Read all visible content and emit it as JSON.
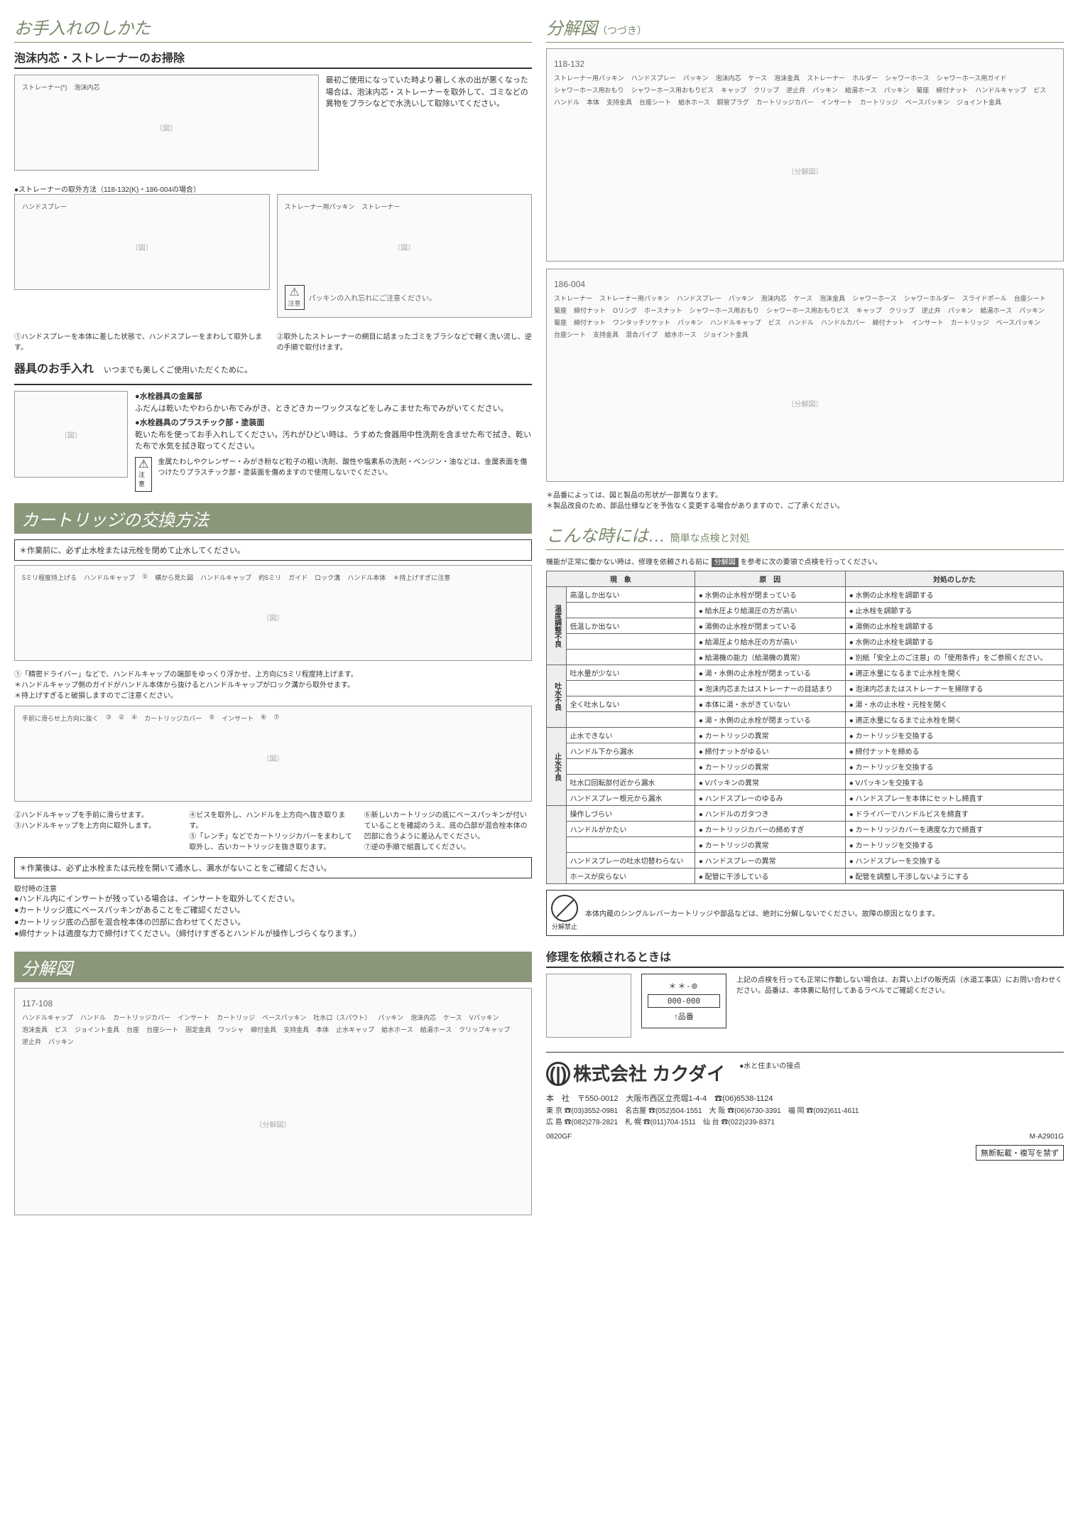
{
  "left": {
    "sec1": {
      "title": "お手入れのしかた",
      "sub1_title": "泡沫内芯・ストレーナーのお掃除",
      "intro": "最初ご使用になっていた時より著しく水の出が悪くなった場合は、泡沫内芯・ストレーナーを取外して、ゴミなどの異物をブラシなどで水洗いして取除いてください。",
      "labels1": [
        "ストレーナー(*)",
        "泡沫内芯"
      ],
      "note1": "●ストレーナーの取外方法（118-132(K)・186-004の場合）",
      "labels2": [
        "ハンドスプレー",
        "ストレーナー用パッキン",
        "ストレーナー"
      ],
      "warn_label": "注意",
      "warn_text": "パッキンの入れ忘れにご注意ください。",
      "step1": "①ハンドスプレーを本体に差した状態で、ハンドスプレーをまわして取外します。",
      "step2": "②取外したストレーナーの網目に詰まったゴミをブラシなどで軽く洗い流し、逆の手順で取付けます。",
      "sub2_title": "器具のお手入れ",
      "sub2_lead": "いつまでも美しくご使用いただくために。",
      "metal_h": "●水栓器具の金属部",
      "metal_t": "ふだんは乾いたやわらかい布でみがき、ときどきカーワックスなどをしみこませた布でみがいてください。",
      "plastic_h": "●水栓器具のプラスチック部・塗装面",
      "plastic_t": "乾いた布を使ってお手入れしてください。汚れがひどい時は、うすめた食器用中性洗剤を含ませた布で拭き、乾いた布で水気を拭き取ってください。",
      "warn2": "金属たわしやクレンザー・みがき粉など粒子の粗い洗剤、酸性や塩素系の洗剤・ベンジン・油などは、金属表面を傷つけたりプラスチック部・塗装面を傷めますので使用しないでください。"
    },
    "sec2": {
      "title": "カートリッジの交換方法",
      "pre": "＊作業前に、必ず止水栓または元栓を閉めて止水してください。",
      "d1_labels": [
        "5ミリ程度持上げる",
        "ハンドルキャップ",
        "①",
        "横から見た図",
        "ハンドルキャップ",
        "約5ミリ",
        "ガイド",
        "ロック溝",
        "ハンドル本体",
        "＊持上げすぎに注意"
      ],
      "t1a": "①「精密ドライバー」などで、ハンドルキャップの端部をゆっくり浮かせ、上方向に5ミリ程度持上げます。",
      "t1b": "＊ハンドルキャップ側のガイドがハンドル本体から抜けるとハンドルキャップがロック溝から取外せます。",
      "t1c": "＊持上げすぎると破損しますのでご注意ください。",
      "d2_labels": [
        "手前に滑らせ上方向に抜く",
        "③",
        "②",
        "④",
        "カートリッジカバー",
        "⑤",
        "インサート",
        "⑥",
        "⑦"
      ],
      "t2": "②ハンドルキャップを手前に滑らせます。",
      "t3": "③ハンドルキャップを上方向に取外します。",
      "t4": "④ビスを取外し、ハンドルを上方向へ抜き取ります。",
      "t5": "⑤「レンチ」などでカートリッジカバーをまわして取外し、古いカートリッジを抜き取ります。",
      "t6": "⑥新しいカートリッジの底にベースパッキンが付いていることを確認のうえ、底の凸部が混合栓本体の凹部に合うように差込んでください。",
      "t7": "⑦逆の手順で組直してください。",
      "post": "＊作業後は、必ず止水栓または元栓を開いて通水し、漏水がないことをご確認ください。",
      "install_h": "取付時の注意",
      "install": [
        "ハンドル内にインサートが残っている場合は、インサートを取外してください。",
        "カートリッジ底にベースパッキンがあることをご確認ください。",
        "カートリッジ底の凸部を混合栓本体の凹部に合わせてください。",
        "締付ナットは適度な力で締付けてください。（締付けすぎるとハンドルが操作しづらくなります。）"
      ]
    },
    "sec3": {
      "title": "分解図",
      "model": "117-108",
      "labels": [
        "ハンドルキャップ",
        "ハンドル",
        "カートリッジカバー",
        "インサート",
        "カートリッジ",
        "ベースパッキン",
        "吐水口（スパウト）",
        "パッキン",
        "泡沫内芯",
        "ケース",
        "Vパッキン",
        "泡沫金具",
        "ビス",
        "ジョイント金具",
        "台座",
        "台座シート",
        "固定金具",
        "ワッシャ",
        "締付金具",
        "支持金具",
        "本体",
        "止水キャップ",
        "給水ホース",
        "給湯ホース",
        "クリップキャップ",
        "逆止弁",
        "パッキン"
      ]
    }
  },
  "right": {
    "sec3b": {
      "title": "分解図",
      "title_sub": "（つづき）",
      "model1": "118-132",
      "labels1": [
        "ストレーナー用パッキン",
        "ハンドスプレー",
        "パッキン",
        "泡沫内芯",
        "ケース",
        "泡沫金具",
        "ストレーナー",
        "ホルダー",
        "シャワーホース",
        "シャワーホース用ガイド",
        "シャワーホース用おもり",
        "シャワーホース用おもりビス",
        "キャップ",
        "クリップ",
        "逆止弁",
        "パッキン",
        "給湯ホース",
        "パッキン",
        "菊座",
        "締付ナット",
        "ハンドルキャップ",
        "ビス",
        "ハンドル",
        "本体",
        "支持金具",
        "台座シート",
        "給水ホース",
        "銅管プラグ",
        "カートリッジカバー",
        "インサート",
        "カートリッジ",
        "ベースパッキン",
        "ジョイント金具"
      ],
      "model2": "186-004",
      "labels2": [
        "ストレーナー",
        "ストレーナー用パッキン",
        "ハンドスプレー",
        "パッキン",
        "泡沫内芯",
        "ケース",
        "泡沫金具",
        "シャワーホース",
        "シャワーホルダー",
        "スライドポール",
        "台座シート",
        "菊座",
        "締付ナット",
        "Oリング",
        "ホースナット",
        "シャワーホース用おもり",
        "シャワーホース用おもりビス",
        "キャップ",
        "クリップ",
        "逆止弁",
        "パッキン",
        "給湯ホース",
        "パッキン",
        "菊座",
        "締付ナット",
        "ワンタッチソケット",
        "パッキン",
        "ハンドルキャップ",
        "ビス",
        "ハンドル",
        "ハンドルカバー",
        "締付ナット",
        "インサート",
        "カートリッジ",
        "ベースパッキン",
        "台座シート",
        "支持金具",
        "混合パイプ",
        "給水ホース",
        "ジョイント金具"
      ],
      "notes": [
        "＊品番によっては、図と製品の形状が一部異なります。",
        "＊製品改良のため、部品仕様などを予告なく変更する場合がありますので、ご了承ください。"
      ]
    },
    "sec4": {
      "title": "こんな時には…",
      "title_sub": "簡単な点検と対処",
      "lead_a": "機能が正常に働かない時は、修理を依頼される前に",
      "lead_tag": "分解図",
      "lead_b": "を参考に次の要領で点検を行ってください。",
      "th1": "現　象",
      "th2": "原　因",
      "th3": "対処のしかた",
      "groups": [
        {
          "g": "温度調整不良",
          "rows": [
            {
              "s": "高温しか出ない",
              "c": "水側の止水栓が閉まっている",
              "a": "水側の止水栓を調節する"
            },
            {
              "s": "",
              "c": "給水圧より給湯圧の方が高い",
              "a": "止水栓を調節する"
            },
            {
              "s": "低温しか出ない",
              "c": "湯側の止水栓が閉まっている",
              "a": "湯側の止水栓を調節する"
            },
            {
              "s": "",
              "c": "給湯圧より給水圧の方が高い",
              "a": "水側の止水栓を調節する"
            },
            {
              "s": "",
              "c": "給湯機の能力（給湯機の異常）",
              "a": "別紙「安全上のご注意」の「使用条件」をご参照ください。"
            }
          ]
        },
        {
          "g": "吐水不良",
          "rows": [
            {
              "s": "吐水量が少ない",
              "c": "湯・水側の止水栓が閉まっている",
              "a": "適正水量になるまで止水栓を開く"
            },
            {
              "s": "",
              "c": "泡沫内芯またはストレーナーの目詰まり",
              "a": "泡沫内芯またはストレーナーを掃除する"
            },
            {
              "s": "全く吐水しない",
              "c": "本体に湯・水がきていない",
              "a": "湯・水の止水栓・元栓を開く"
            },
            {
              "s": "",
              "c": "湯・水側の止水栓が閉まっている",
              "a": "適正水量になるまで止水栓を開く"
            }
          ]
        },
        {
          "g": "止水不良",
          "rows": [
            {
              "s": "止水できない",
              "c": "カートリッジの異常",
              "a": "カートリッジを交換する"
            },
            {
              "s": "ハンドル下から漏水",
              "c": "締付ナットがゆるい",
              "a": "締付ナットを締める"
            },
            {
              "s": "",
              "c": "カートリッジの異常",
              "a": "カートリッジを交換する"
            },
            {
              "s": "吐水口回転部付近から漏水",
              "c": "Vパッキンの異常",
              "a": "Vパッキンを交換する"
            },
            {
              "s": "ハンドスプレー根元から漏水",
              "c": "ハンドスプレーのゆるみ",
              "a": "ハンドスプレーを本体にセットし締直す"
            }
          ]
        },
        {
          "g": "",
          "rows": [
            {
              "s": "操作しづらい",
              "c": "ハンドルのガタつき",
              "a": "ドライバーでハンドルビスを締直す"
            },
            {
              "s": "ハンドルがかたい",
              "c": "カートリッジカバーの締めすぎ",
              "a": "カートリッジカバーを適度な力で締直す"
            },
            {
              "s": "",
              "c": "カートリッジの異常",
              "a": "カートリッジを交換する"
            },
            {
              "s": "ハンドスプレーの吐水切替わらない",
              "c": "ハンドスプレーの異常",
              "a": "ハンドスプレーを交換する"
            },
            {
              "s": "ホースが戻らない",
              "c": "配管に干渉している",
              "a": "配管を調整し干渉しないようにする"
            }
          ]
        }
      ],
      "prohibit_label": "分解禁止",
      "prohibit_text": "本体内蔵のシングルレバーカートリッジや部品などは、絶対に分解しないでください。故障の原因となります。"
    },
    "sec5": {
      "title": "修理を依頼されるときは",
      "code_stars": "＊＊-⊛",
      "code_num": "000-000",
      "code_arrow": "↑品番",
      "text": "上記の点検を行っても正常に作動しない場合は、お買い上げの販売店（水道工事店）にお問い合わせください。品番は、本体裏に貼付してあるラベルでご確認ください。"
    },
    "footer": {
      "tagline": "●水と住まいの接点",
      "company": "株式会社 カクダイ",
      "hq": "本　社　〒550-0012　大阪市西区立売堀1-4-4　☎(06)6538-1124",
      "branches": "東 京 ☎(03)3552-0981　名古屋 ☎(052)504-1551　大 阪 ☎(06)6730-3391　福 岡 ☎(092)611-4611\n広 島 ☎(082)278-2821　札 幌 ☎(011)704-1511　仙 台 ☎(022)239-8371",
      "code1": "0820GF",
      "code2": "M-A2901G",
      "copy": "無断転載・複写を禁ず"
    }
  }
}
